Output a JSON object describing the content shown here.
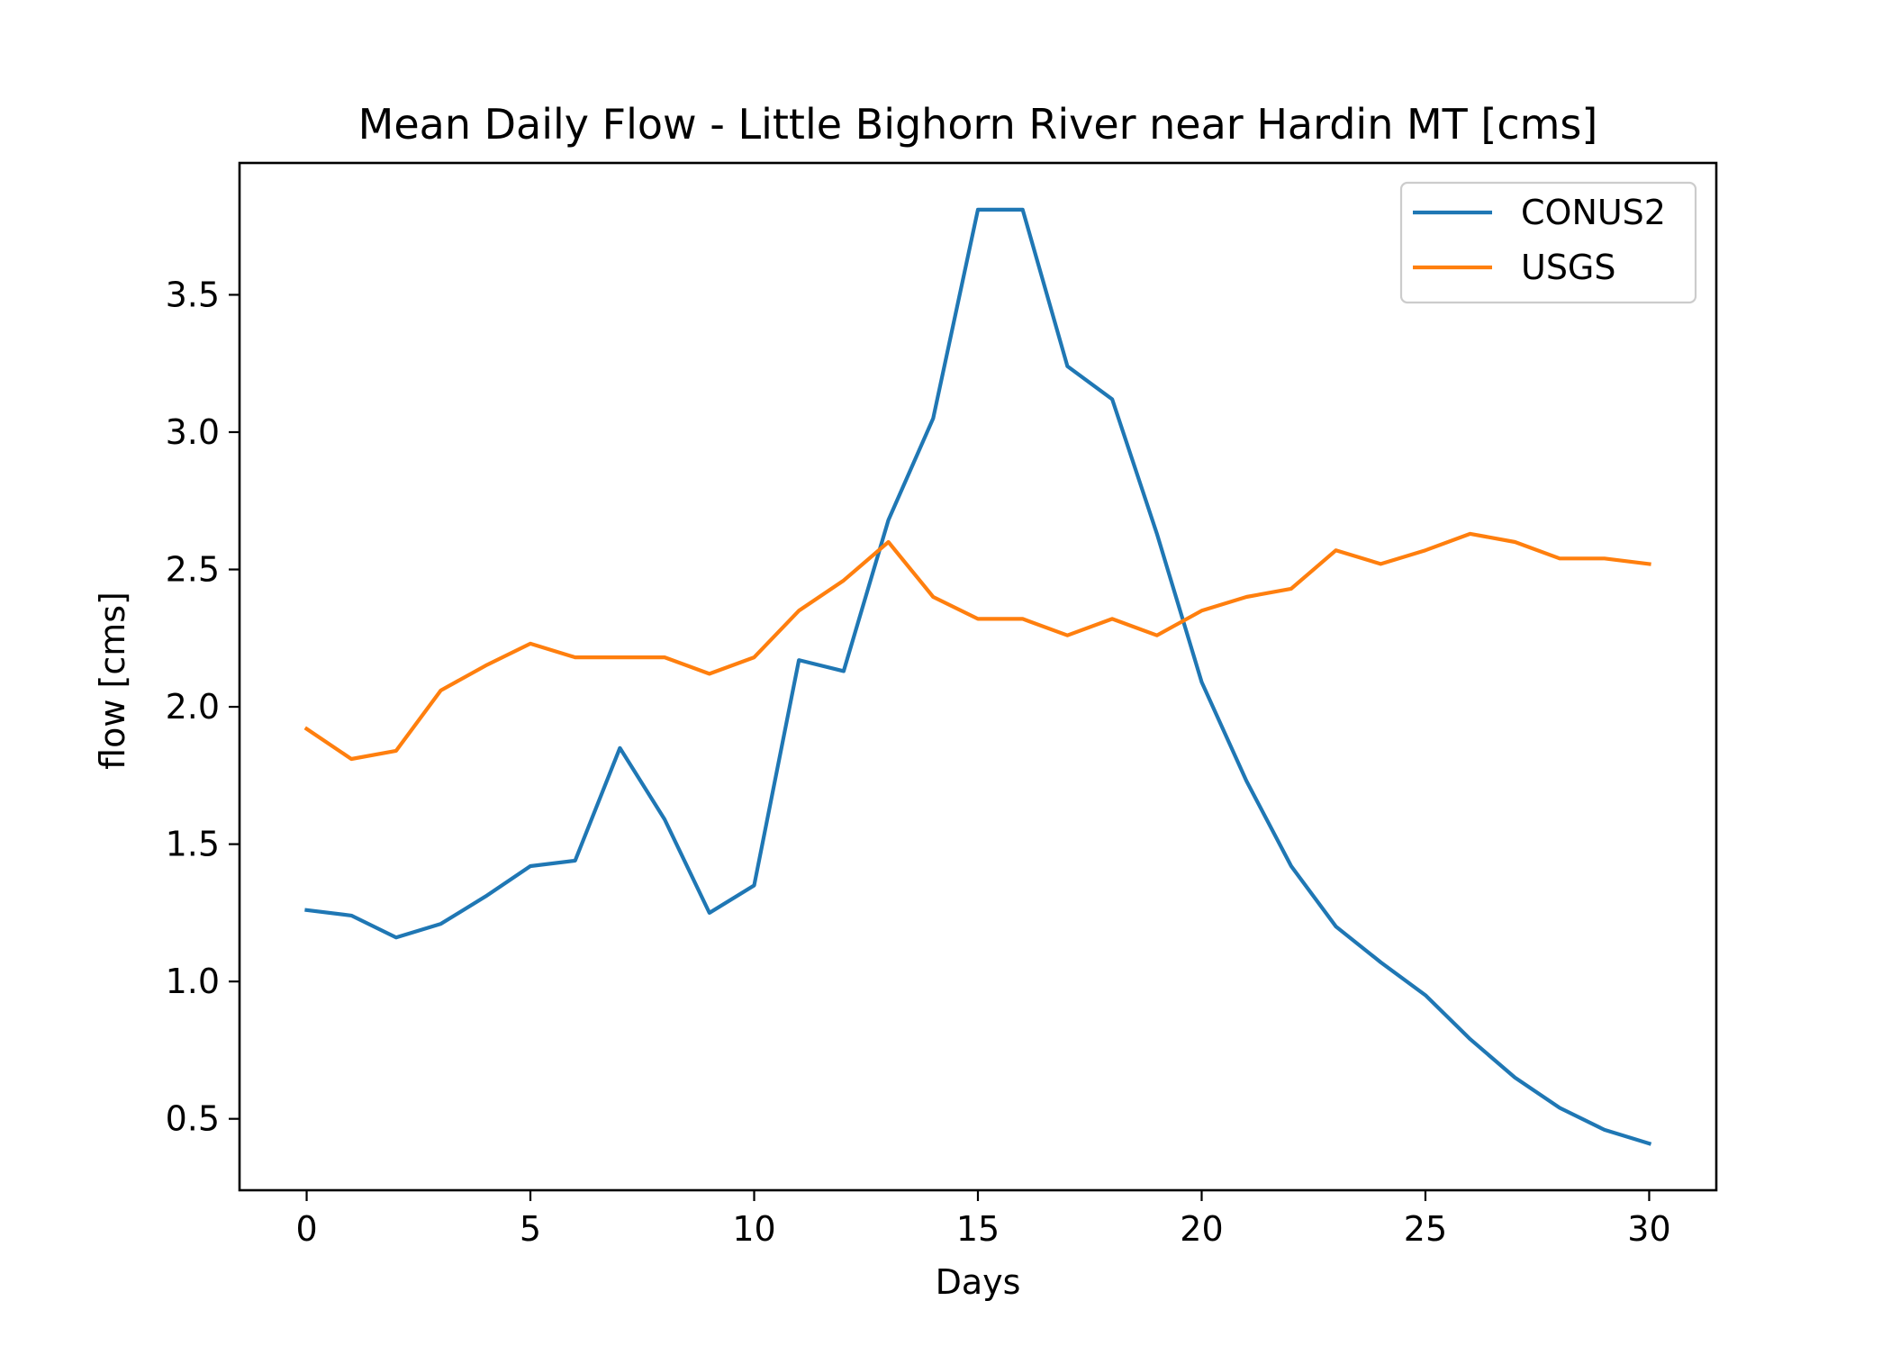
{
  "chart_data": {
    "type": "line",
    "title": "Mean Daily Flow - Little Bighorn River near Hardin MT [cms]",
    "xlabel": "Days",
    "ylabel": "flow [cms]",
    "xlim": [
      -1.5,
      31.5
    ],
    "ylim": [
      0.24,
      3.98
    ],
    "xticks": [
      0,
      5,
      10,
      15,
      20,
      25,
      30
    ],
    "xtick_labels": [
      "0",
      "5",
      "10",
      "15",
      "20",
      "25",
      "30"
    ],
    "yticks": [
      0.5,
      1.0,
      1.5,
      2.0,
      2.5,
      3.0,
      3.5
    ],
    "ytick_labels": [
      "0.5",
      "1.0",
      "1.5",
      "2.0",
      "2.5",
      "3.0",
      "3.5"
    ],
    "grid": false,
    "legend_position": "top-right",
    "x": [
      0,
      1,
      2,
      3,
      4,
      5,
      6,
      7,
      8,
      9,
      10,
      11,
      12,
      13,
      14,
      15,
      16,
      17,
      18,
      19,
      20,
      21,
      22,
      23,
      24,
      25,
      26,
      27,
      28,
      29,
      30
    ],
    "series": [
      {
        "name": "CONUS2",
        "color": "#1f77b4",
        "values": [
          1.26,
          1.24,
          1.16,
          1.21,
          1.31,
          1.42,
          1.44,
          1.85,
          1.59,
          1.25,
          1.35,
          2.17,
          2.13,
          2.68,
          3.05,
          3.81,
          3.81,
          3.24,
          3.12,
          2.63,
          2.09,
          1.73,
          1.42,
          1.2,
          1.07,
          0.95,
          0.79,
          0.65,
          0.54,
          0.46,
          0.41
        ]
      },
      {
        "name": "USGS",
        "color": "#ff7f0e",
        "values": [
          1.92,
          1.81,
          1.84,
          2.06,
          2.15,
          2.23,
          2.18,
          2.18,
          2.18,
          2.12,
          2.18,
          2.35,
          2.46,
          2.6,
          2.4,
          2.32,
          2.32,
          2.26,
          2.32,
          2.26,
          2.35,
          2.4,
          2.43,
          2.57,
          2.52,
          2.57,
          2.63,
          2.6,
          2.54,
          2.54,
          2.52
        ]
      }
    ]
  }
}
